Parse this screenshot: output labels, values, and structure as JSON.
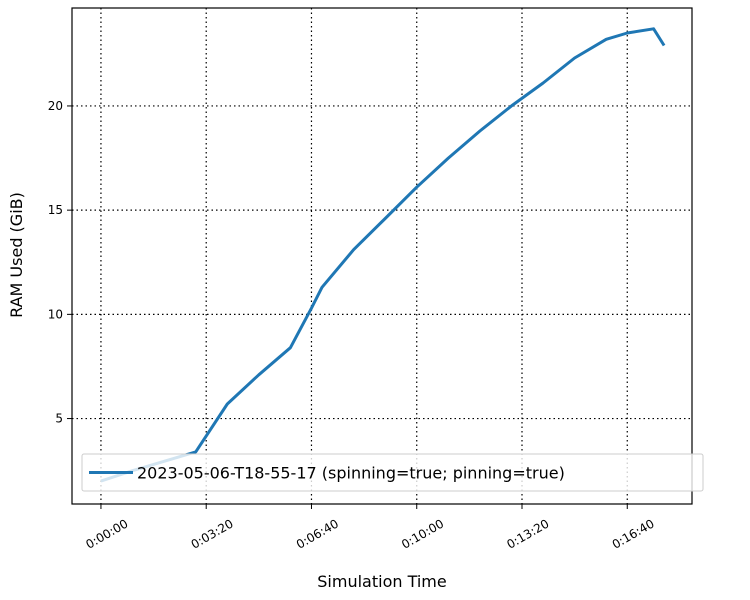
{
  "chart_data": {
    "type": "line",
    "xlabel": "Simulation Time",
    "ylabel": "RAM Used (GiB)",
    "x_ticks": [
      "0:00:00",
      "0:03:20",
      "0:06:40",
      "0:10:00",
      "0:13:20",
      "0:16:40"
    ],
    "x_tick_values": [
      0,
      200,
      400,
      600,
      800,
      1000
    ],
    "y_ticks": [
      "5",
      "10",
      "15",
      "20"
    ],
    "y_tick_values": [
      5,
      10,
      15,
      20
    ],
    "xlim": [
      -55,
      1123
    ],
    "ylim": [
      0.9,
      24.7
    ],
    "grid": true,
    "legend_position": "lower right",
    "series": [
      {
        "name": "2023-05-06-T18-55-17 (spinning=true; pinning=true)",
        "color": "#1f77b4",
        "x": [
          0,
          60,
          120,
          180,
          240,
          300,
          360,
          400,
          420,
          480,
          540,
          600,
          660,
          720,
          780,
          840,
          900,
          960,
          1000,
          1050,
          1070
        ],
        "y": [
          2.0,
          2.5,
          2.95,
          3.4,
          5.7,
          7.1,
          8.4,
          10.3,
          11.3,
          13.1,
          14.6,
          16.1,
          17.5,
          18.8,
          20.0,
          21.1,
          22.3,
          23.2,
          23.5,
          23.7,
          22.9
        ]
      }
    ]
  }
}
